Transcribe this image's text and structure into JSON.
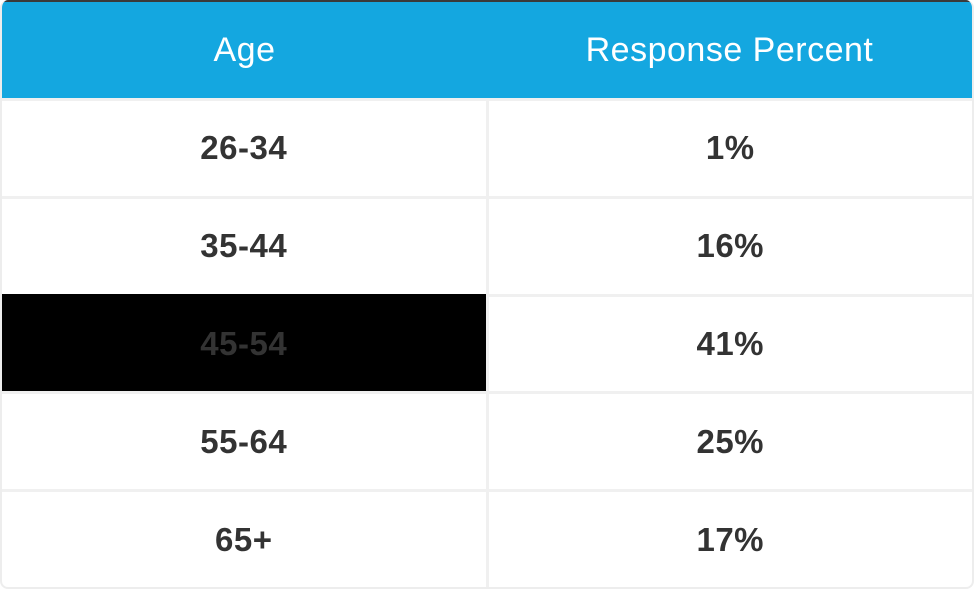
{
  "table": {
    "columns": [
      {
        "label": "Age"
      },
      {
        "label": "Response Percent"
      }
    ],
    "rows": [
      {
        "age": "26-34",
        "percent": "1%",
        "highlighted": false
      },
      {
        "age": "35-44",
        "percent": "16%",
        "highlighted": false
      },
      {
        "age": "45-54",
        "percent": "41%",
        "highlighted": true
      },
      {
        "age": "55-64",
        "percent": "25%",
        "highlighted": false
      },
      {
        "age": "65+",
        "percent": "17%",
        "highlighted": false
      }
    ]
  },
  "colors": {
    "header_bg": "#14a7e0",
    "header_text": "#ffffff",
    "cell_bg": "#ffffff",
    "cell_text": "#333333",
    "divider": "#f0f0f0",
    "highlight_bg": "#000000",
    "highlight_text": "#333333",
    "card_border": "#ededed",
    "top_edge": "#3a3a3a"
  },
  "chart_data": {
    "type": "table",
    "title": "",
    "columns": [
      "Age",
      "Response Percent"
    ],
    "rows": [
      [
        "26-34",
        "1%"
      ],
      [
        "35-44",
        "16%"
      ],
      [
        "45-54",
        "41%"
      ],
      [
        "55-64",
        "25%"
      ],
      [
        "65+",
        "17%"
      ]
    ],
    "categories": [
      "26-34",
      "35-44",
      "45-54",
      "55-64",
      "65+"
    ],
    "values": [
      1,
      16,
      41,
      25,
      17
    ],
    "value_unit": "percent",
    "highlighted_category": "45-54"
  }
}
